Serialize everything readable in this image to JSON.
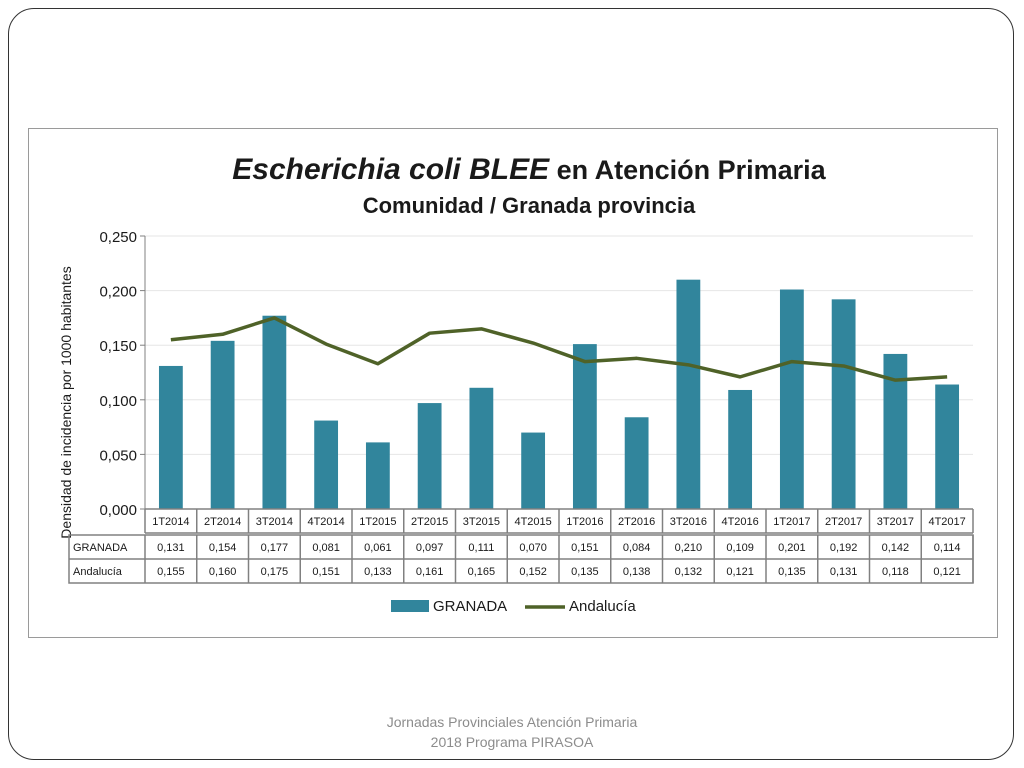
{
  "footer": {
    "line1": "Jornadas Provinciales Atención Primaria",
    "line2": "2018  Programa PIRASOA"
  },
  "colors": {
    "bar": "#31859c",
    "line": "#4f6228",
    "grid": "#e6e6e6",
    "table_border": "#808080"
  },
  "chart_data": {
    "type": "bar",
    "title_italic": "Escherichia coli BLEE",
    "title_rest": " en Atención Primaria",
    "subtitle": "Comunidad / Granada provincia",
    "ylabel": "Densidad de incidencia por 1000 habitantes",
    "ylim": [
      0,
      0.25
    ],
    "yticks": [
      "0,000",
      "0,050",
      "0,100",
      "0,150",
      "0,200",
      "0,250"
    ],
    "categories": [
      "1T2014",
      "2T2014",
      "3T2014",
      "4T2014",
      "1T2015",
      "2T2015",
      "3T2015",
      "4T2015",
      "1T2016",
      "2T2016",
      "3T2016",
      "4T2016",
      "1T2017",
      "2T2017",
      "3T2017",
      "4T2017"
    ],
    "series": [
      {
        "name": "GRANADA",
        "kind": "bar",
        "values": [
          0.131,
          0.154,
          0.177,
          0.081,
          0.061,
          0.097,
          0.111,
          0.07,
          0.151,
          0.084,
          0.21,
          0.109,
          0.201,
          0.192,
          0.142,
          0.114
        ],
        "labels": [
          "0,131",
          "0,154",
          "0,177",
          "0,081",
          "0,061",
          "0,097",
          "0,111",
          "0,070",
          "0,151",
          "0,084",
          "0,210",
          "0,109",
          "0,201",
          "0,192",
          "0,142",
          "0,114"
        ]
      },
      {
        "name": "Andalucía",
        "kind": "line",
        "values": [
          0.155,
          0.16,
          0.175,
          0.151,
          0.133,
          0.161,
          0.165,
          0.152,
          0.135,
          0.138,
          0.132,
          0.121,
          0.135,
          0.131,
          0.118,
          0.121
        ],
        "labels": [
          "0,155",
          "0,160",
          "0,175",
          "0,151",
          "0,133",
          "0,161",
          "0,165",
          "0,152",
          "0,135",
          "0,138",
          "0,132",
          "0,121",
          "0,135",
          "0,131",
          "0,118",
          "0,121"
        ]
      }
    ],
    "legend_position": "bottom",
    "grid": true
  }
}
